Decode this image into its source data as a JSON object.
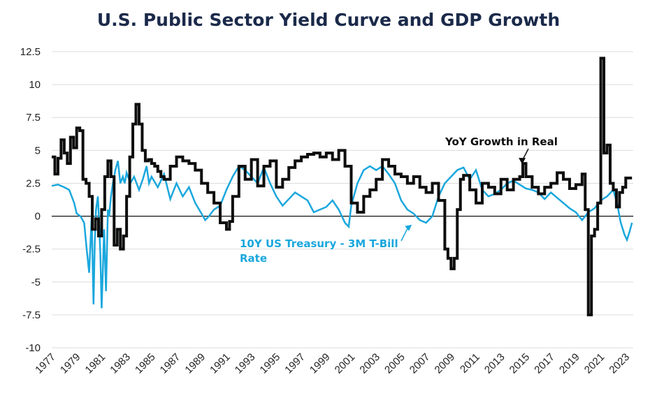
{
  "chart_data": {
    "type": "line",
    "title": "U.S. Public Sector Yield Curve and GDP Growth",
    "xlabel": "",
    "ylabel": "",
    "xlim": [
      1977,
      2023.6
    ],
    "ylim": [
      -10,
      12.5
    ],
    "grid": true,
    "y_ticks": [
      12.5,
      10,
      7.5,
      5,
      2.5,
      0,
      -2.5,
      -5,
      -7.5,
      -10
    ],
    "y_tick_labels": [
      "12.5",
      "10",
      "7.5",
      "5",
      "2.5",
      "0",
      "-2.5",
      "-5",
      "-7.5",
      "-10"
    ],
    "x_ticks": [
      1977,
      1979,
      1981,
      1983,
      1985,
      1987,
      1989,
      1991,
      1993,
      1995,
      1997,
      1999,
      2001,
      2003,
      2005,
      2007,
      2009,
      2011,
      2013,
      2015,
      2017,
      2019,
      2021,
      2023
    ],
    "x_tick_labels": [
      "1977",
      "1979",
      "1981",
      "1983",
      "1985",
      "1987",
      "1989",
      "1991",
      "1993",
      "1995",
      "1997",
      "1999",
      "2001",
      "2003",
      "2005",
      "2007",
      "2009",
      "2011",
      "2013",
      "2015",
      "2017",
      "2019",
      "2021",
      "2023"
    ],
    "series": [
      {
        "name": "YoY Growth in Real",
        "color": "#0d0d0d",
        "style": "step",
        "x": [
          1977.0,
          1977.25,
          1977.5,
          1977.75,
          1978.0,
          1978.25,
          1978.5,
          1978.75,
          1979.0,
          1979.25,
          1979.5,
          1979.75,
          1980.0,
          1980.25,
          1980.5,
          1980.75,
          1981.0,
          1981.25,
          1981.5,
          1981.75,
          1982.0,
          1982.25,
          1982.5,
          1982.75,
          1983.0,
          1983.25,
          1983.5,
          1983.75,
          1984.0,
          1984.25,
          1984.5,
          1984.75,
          1985.0,
          1985.25,
          1985.5,
          1985.75,
          1986.0,
          1986.5,
          1987.0,
          1987.5,
          1988.0,
          1988.5,
          1989.0,
          1989.5,
          1990.0,
          1990.5,
          1991.0,
          1991.25,
          1991.5,
          1992.0,
          1992.5,
          1993.0,
          1993.5,
          1994.0,
          1994.5,
          1995.0,
          1995.5,
          1996.0,
          1996.5,
          1997.0,
          1997.5,
          1998.0,
          1998.5,
          1999.0,
          1999.5,
          2000.0,
          2000.5,
          2001.0,
          2001.5,
          2002.0,
          2002.5,
          2003.0,
          2003.5,
          2004.0,
          2004.5,
          2005.0,
          2005.5,
          2006.0,
          2006.5,
          2007.0,
          2007.5,
          2008.0,
          2008.5,
          2008.75,
          2009.0,
          2009.25,
          2009.5,
          2009.75,
          2010.0,
          2010.5,
          2011.0,
          2011.5,
          2012.0,
          2012.5,
          2013.0,
          2013.5,
          2014.0,
          2014.5,
          2014.75,
          2015.0,
          2015.5,
          2016.0,
          2016.5,
          2017.0,
          2017.5,
          2018.0,
          2018.5,
          2019.0,
          2019.5,
          2019.75,
          2020.0,
          2020.25,
          2020.5,
          2020.75,
          2021.0,
          2021.25,
          2021.5,
          2021.75,
          2022.0,
          2022.25,
          2022.5,
          2022.75,
          2023.0,
          2023.25
        ],
        "y": [
          4.5,
          3.2,
          4.4,
          5.8,
          4.8,
          4.0,
          6.0,
          5.2,
          6.7,
          6.5,
          2.8,
          2.5,
          1.5,
          -1.0,
          -0.2,
          -1.5,
          0.5,
          3.0,
          4.2,
          3.0,
          -2.2,
          -1.0,
          -2.5,
          -1.5,
          1.5,
          4.5,
          7.0,
          8.5,
          7.0,
          5.0,
          4.2,
          4.3,
          4.0,
          3.8,
          3.4,
          3.0,
          2.8,
          3.8,
          4.5,
          4.2,
          4.0,
          3.5,
          2.5,
          1.8,
          1.0,
          -0.5,
          -1.0,
          -0.4,
          1.5,
          3.8,
          2.8,
          4.3,
          2.3,
          3.8,
          4.2,
          2.2,
          2.8,
          3.7,
          4.2,
          4.5,
          4.7,
          4.8,
          4.5,
          4.8,
          4.3,
          5.0,
          3.8,
          1.0,
          0.3,
          1.5,
          2.0,
          2.8,
          4.3,
          3.8,
          3.2,
          3.0,
          2.5,
          3.0,
          2.2,
          1.8,
          2.5,
          1.2,
          -2.5,
          -3.2,
          -4.0,
          -3.2,
          0.5,
          2.8,
          3.1,
          2.0,
          1.0,
          2.5,
          2.2,
          1.7,
          2.8,
          2.0,
          2.8,
          3.0,
          4.0,
          3.0,
          2.2,
          1.7,
          2.2,
          2.5,
          3.3,
          2.8,
          2.1,
          2.4,
          3.2,
          0.5,
          -7.5,
          -1.5,
          -1.0,
          1.0,
          12.0,
          4.8,
          5.4,
          2.5,
          2.0,
          0.7,
          1.8,
          2.2,
          2.9,
          2.9
        ]
      },
      {
        "name": "10Y US Treasury - 3M T-Bill Rate",
        "color": "#1aa7dd",
        "style": "line",
        "x": [
          1977.0,
          1977.5,
          1978.0,
          1978.4,
          1978.8,
          1979.0,
          1979.3,
          1979.6,
          1979.8,
          1980.0,
          1980.2,
          1980.35,
          1980.45,
          1980.55,
          1980.7,
          1980.8,
          1980.9,
          1981.0,
          1981.1,
          1981.2,
          1981.35,
          1981.5,
          1981.6,
          1981.75,
          1981.9,
          1982.1,
          1982.3,
          1982.5,
          1982.7,
          1982.85,
          1983.0,
          1983.3,
          1983.6,
          1984.0,
          1984.3,
          1984.6,
          1984.8,
          1985.0,
          1985.5,
          1986.0,
          1986.5,
          1987.0,
          1987.5,
          1988.0,
          1988.5,
          1989.0,
          1989.3,
          1989.6,
          1990.0,
          1990.5,
          1991.0,
          1991.5,
          1992.0,
          1992.5,
          1993.0,
          1993.5,
          1994.0,
          1994.5,
          1995.0,
          1995.5,
          1996.0,
          1996.5,
          1997.0,
          1997.5,
          1998.0,
          1998.5,
          1999.0,
          1999.5,
          2000.0,
          2000.5,
          2000.8,
          2001.0,
          2001.5,
          2002.0,
          2002.5,
          2003.0,
          2003.5,
          2004.0,
          2004.5,
          2005.0,
          2005.5,
          2006.0,
          2006.5,
          2007.0,
          2007.5,
          2008.0,
          2008.5,
          2009.0,
          2009.5,
          2010.0,
          2010.5,
          2011.0,
          2011.5,
          2012.0,
          2012.5,
          2013.0,
          2013.5,
          2014.0,
          2014.5,
          2015.0,
          2015.5,
          2016.0,
          2016.5,
          2017.0,
          2017.5,
          2018.0,
          2018.5,
          2019.0,
          2019.5,
          2020.0,
          2020.5,
          2021.0,
          2021.5,
          2022.0,
          2022.3,
          2022.6,
          2022.9,
          2023.1,
          2023.3,
          2023.5
        ],
        "y": [
          2.3,
          2.4,
          2.2,
          2.0,
          1.0,
          0.2,
          0.0,
          -0.5,
          -2.5,
          -4.3,
          0.0,
          -6.7,
          -2.0,
          0.5,
          1.5,
          -0.5,
          -3.0,
          -7.0,
          -4.0,
          -1.0,
          -5.7,
          0.5,
          0.0,
          1.5,
          2.5,
          3.5,
          4.2,
          2.5,
          3.0,
          2.5,
          3.3,
          2.5,
          3.0,
          2.0,
          2.8,
          3.8,
          2.5,
          3.0,
          2.2,
          3.2,
          1.3,
          2.5,
          1.5,
          2.2,
          1.0,
          0.2,
          -0.3,
          0.0,
          0.5,
          0.8,
          2.0,
          3.0,
          3.8,
          3.5,
          3.0,
          2.5,
          3.7,
          2.5,
          1.5,
          0.8,
          1.3,
          1.8,
          1.5,
          1.2,
          0.3,
          0.5,
          0.7,
          1.2,
          0.5,
          -0.5,
          -0.8,
          0.8,
          2.5,
          3.5,
          3.8,
          3.5,
          3.8,
          3.2,
          2.5,
          1.2,
          0.5,
          0.2,
          -0.3,
          -0.5,
          0.0,
          1.5,
          2.5,
          3.0,
          3.5,
          3.7,
          2.8,
          3.5,
          2.0,
          1.5,
          1.7,
          2.0,
          2.5,
          2.7,
          2.4,
          2.1,
          2.0,
          1.8,
          1.3,
          1.8,
          1.4,
          1.0,
          0.6,
          0.3,
          -0.3,
          0.3,
          0.6,
          1.2,
          1.5,
          2.0,
          1.0,
          -0.5,
          -1.4,
          -1.8,
          -1.2,
          -0.5
        ]
      }
    ],
    "annotations": [
      {
        "text": "YoY Growth in Real",
        "color": "#0d0d0d",
        "arrow_to": [
          2014.7,
          4.0
        ]
      },
      {
        "text_lines": [
          "10Y US Treasury - 3M T-Bill",
          "Rate"
        ],
        "color": "#1aa7dd",
        "arrow_to": [
          2005.8,
          -0.7
        ]
      }
    ]
  }
}
